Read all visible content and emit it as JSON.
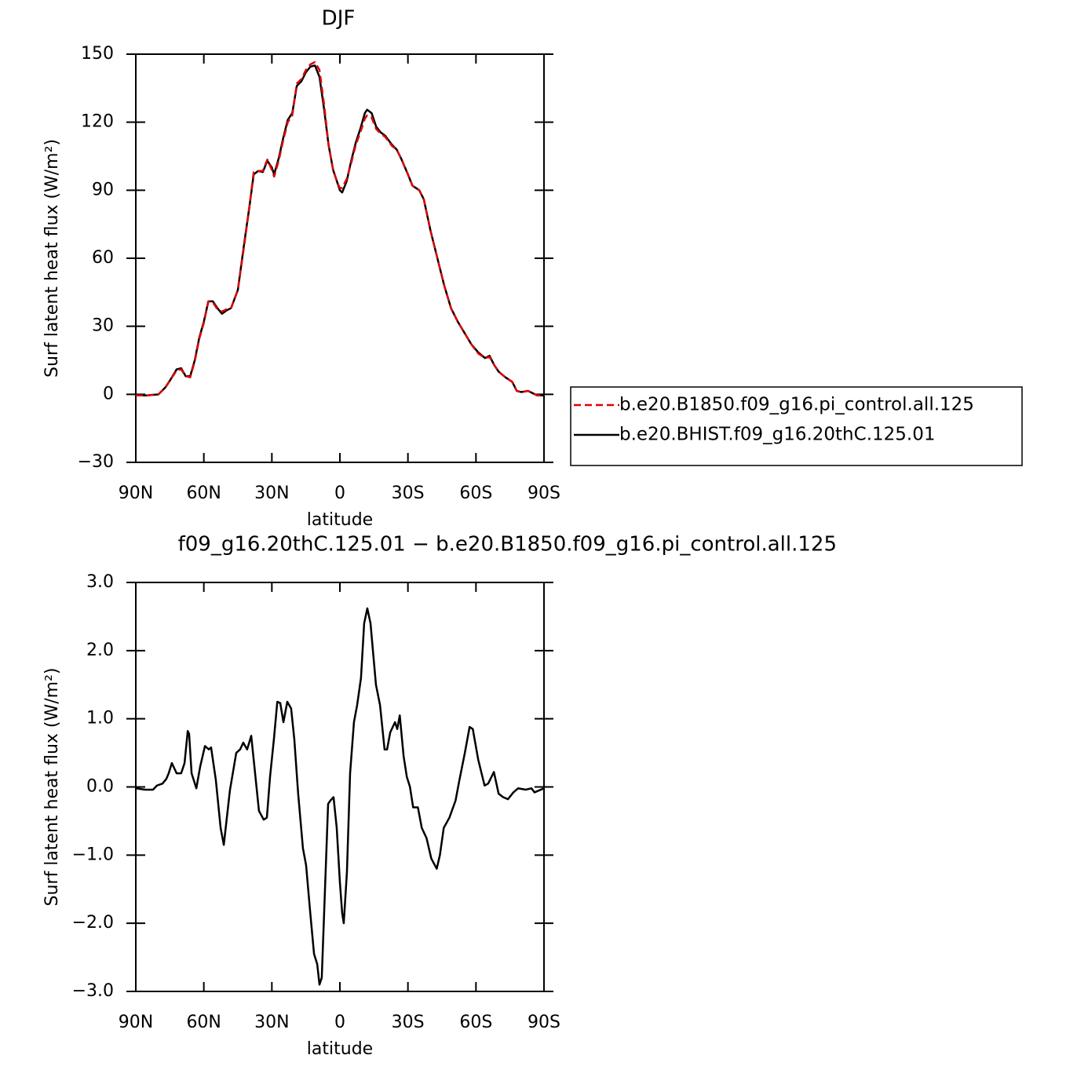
{
  "chart_data": [
    {
      "type": "line",
      "title": "DJF",
      "x_label": "latitude",
      "y_label": "Surf latent heat flux (W/m²)",
      "xlim": [
        90,
        -90
      ],
      "ylim": [
        -30,
        150
      ],
      "xticks": [
        {
          "value": 90,
          "label": "90N"
        },
        {
          "value": 60,
          "label": "60N"
        },
        {
          "value": 30,
          "label": "30N"
        },
        0,
        {
          "value": -30,
          "label": "30S"
        },
        {
          "value": -60,
          "label": "60S"
        },
        {
          "value": -90,
          "label": "90S"
        }
      ],
      "yticks": [
        {
          "value": -30,
          "label": "−30"
        },
        0,
        30,
        60,
        90,
        120,
        150
      ],
      "legend": "right",
      "x": [
        90,
        85,
        80,
        77,
        75,
        72,
        70,
        68,
        66,
        64,
        62,
        60,
        58,
        56,
        54,
        52,
        50,
        48,
        45,
        42,
        40,
        38,
        36,
        34,
        32,
        30,
        29,
        27,
        25,
        23,
        21,
        19,
        17,
        15,
        13,
        11,
        9,
        7,
        5,
        3,
        1,
        0,
        -1,
        -3,
        -5,
        -7,
        -9,
        -11,
        -12,
        -14,
        -16,
        -18,
        -20,
        -23,
        -25,
        -27,
        -30,
        -32,
        -35,
        -37,
        -40,
        -43,
        -46,
        -49,
        -52,
        -55,
        -58,
        -61,
        -64,
        -66,
        -68,
        -70,
        -73,
        -76,
        -78,
        -80,
        -83,
        -85,
        -87,
        -90
      ],
      "series": [
        {
          "name": "b.e20.B1850.f09_g16.pi_control.all.125",
          "color": "#e00000",
          "dash": true,
          "values": [
            -0.5,
            -0.5,
            0,
            3,
            6,
            10.5,
            11,
            8,
            7.5,
            14.5,
            24.5,
            31.5,
            41,
            40.5,
            37.5,
            36.5,
            37.5,
            38,
            46,
            67,
            82,
            98,
            98.5,
            98.5,
            103.5,
            99,
            96,
            103,
            112,
            120,
            123,
            137,
            139,
            143,
            145.5,
            146.5,
            143,
            128,
            110,
            99,
            93,
            91,
            91,
            95,
            102,
            110,
            115.5,
            121.5,
            123,
            122,
            117,
            115,
            113.5,
            109.5,
            108,
            104,
            97,
            92,
            90,
            86,
            72,
            60,
            48,
            38,
            32,
            27,
            22,
            18,
            16,
            16.5,
            13,
            10,
            7.5,
            5.5,
            1.5,
            1,
            1.5,
            0.5,
            -0.5,
            -0.5
          ]
        },
        {
          "name": "b.e20.BHIST.f09_g16.20thC.125.01",
          "color": "#000000",
          "dash": false,
          "values": [
            -0.5,
            -0.5,
            0,
            3,
            6,
            11,
            11.5,
            8,
            8,
            15,
            25,
            32,
            41,
            41,
            38,
            35.5,
            37,
            38,
            46,
            68,
            82,
            97,
            98.5,
            98,
            103,
            100,
            97,
            104,
            113,
            121,
            124,
            136,
            138,
            142,
            144.5,
            145,
            140,
            126,
            110,
            99,
            93,
            90,
            89,
            94,
            103,
            111,
            117,
            124,
            125.5,
            124,
            118,
            115.5,
            114,
            110,
            108,
            104,
            97,
            92,
            90,
            86,
            72,
            60,
            48,
            38,
            32,
            27,
            22,
            18.5,
            16,
            17,
            13,
            10,
            7.5,
            5.5,
            1.5,
            1,
            1.5,
            0.5,
            -0.5,
            -0.5
          ]
        }
      ]
    },
    {
      "type": "line",
      "title": "f09_g16.20thC.125.01 − b.e20.B1850.f09_g16.pi_control.all.125",
      "x_label": "latitude",
      "y_label": "Surf latent heat flux (W/m²)",
      "xlim": [
        90,
        -90
      ],
      "ylim": [
        -3,
        3
      ],
      "xticks": [
        {
          "value": 90,
          "label": "90N"
        },
        {
          "value": 60,
          "label": "60N"
        },
        {
          "value": 30,
          "label": "30N"
        },
        0,
        {
          "value": -30,
          "label": "30S"
        },
        {
          "value": -60,
          "label": "60S"
        },
        {
          "value": -90,
          "label": "90S"
        }
      ],
      "yticks": [
        {
          "value": -3,
          "label": "−3.0"
        },
        {
          "value": -2,
          "label": "−2.0"
        },
        {
          "value": -1,
          "label": "−1.0"
        },
        {
          "value": 0,
          "label": "0.0"
        },
        {
          "value": 1,
          "label": "1.0"
        },
        {
          "value": 2,
          "label": "2.0"
        },
        {
          "value": 3,
          "label": "3.0"
        }
      ],
      "x": [
        90,
        85.8,
        82.4,
        80.7,
        78.2,
        76.5,
        75.5,
        74.1,
        72,
        70,
        68.5,
        67.1,
        66.5,
        65.4,
        63.3,
        61.6,
        59.5,
        57.8,
        56.8,
        54.7,
        52.6,
        51.2,
        48.5,
        45.7,
        44,
        42.6,
        40.9,
        39.1,
        37.7,
        35.7,
        33.6,
        32.2,
        30.8,
        29.1,
        27.6,
        26.3,
        24.9,
        23.2,
        21.5,
        20.1,
        18.4,
        16.3,
        14.9,
        13.2,
        11.4,
        10,
        9,
        8,
        6.9,
        5.2,
        4.2,
        2.8,
        1.4,
        0,
        -1,
        -1.7,
        -3.1,
        -4.5,
        -6.2,
        -7.6,
        -9.3,
        -10.7,
        -12.1,
        -13.5,
        -15.9,
        -17.7,
        -19.7,
        -20.8,
        -22.2,
        -24.3,
        -25.3,
        -26.4,
        -28.1,
        -29.5,
        -30.9,
        -32.3,
        -34.4,
        -36.1,
        -38.2,
        -40.3,
        -42.7,
        -44.1,
        -45.8,
        -48.3,
        -51,
        -52.7,
        -55.1,
        -57.2,
        -58.6,
        -61,
        -63.8,
        -65.4,
        -67.9,
        -70,
        -72,
        -74.1,
        -76.5,
        -78.6,
        -82,
        -84.5,
        -85.8,
        -90
      ],
      "series": [
        {
          "color": "#000000",
          "dash": false,
          "values": [
            -0.02,
            -0.04,
            -0.04,
            0.02,
            0.05,
            0.12,
            0.2,
            0.35,
            0.2,
            0.2,
            0.35,
            0.82,
            0.78,
            0.2,
            -0.02,
            0.3,
            0.6,
            0.55,
            0.58,
            0.1,
            -0.6,
            -0.85,
            -0.05,
            0.5,
            0.55,
            0.65,
            0.55,
            0.75,
            0.3,
            -0.35,
            -0.48,
            -0.45,
            0.15,
            0.7,
            1.25,
            1.23,
            0.95,
            1.25,
            1.15,
            0.7,
            -0.1,
            -0.9,
            -1.15,
            -1.8,
            -2.45,
            -2.6,
            -2.9,
            -2.8,
            -1.8,
            -0.25,
            -0.2,
            -0.15,
            -0.6,
            -1.4,
            -1.85,
            -2.0,
            -1.25,
            0.2,
            0.95,
            1.2,
            1.6,
            2.4,
            2.62,
            2.4,
            1.5,
            1.2,
            0.55,
            0.55,
            0.8,
            0.95,
            0.85,
            1.05,
            0.45,
            0.15,
            0,
            -0.3,
            -0.3,
            -0.6,
            -0.75,
            -1.05,
            -1.2,
            -1.0,
            -0.6,
            -0.45,
            -0.2,
            0.1,
            0.5,
            0.88,
            0.85,
            0.4,
            0.02,
            0.05,
            0.22,
            -0.1,
            -0.15,
            -0.18,
            -0.08,
            -0.02,
            -0.04,
            -0.02,
            -0.08,
            -0.02
          ]
        }
      ]
    }
  ]
}
